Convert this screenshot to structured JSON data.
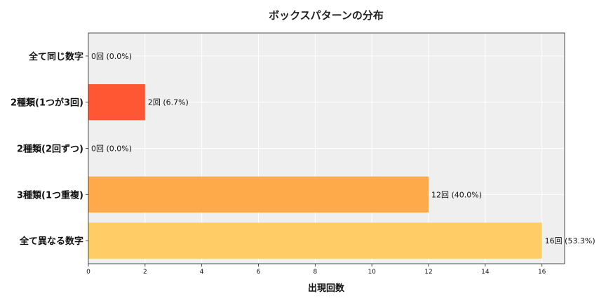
{
  "chart_data": {
    "type": "bar",
    "orientation": "horizontal",
    "title": "ボックスパターンの分布",
    "xlabel": "出現回数",
    "ylabel": "",
    "xlim": [
      0,
      16.8
    ],
    "xticks": [
      0,
      2,
      4,
      6,
      8,
      10,
      12,
      14,
      16
    ],
    "grid": true,
    "categories": [
      "全て同じ数字",
      "2種類(1つが3回)",
      "2種類(2回ずつ)",
      "3種類(1つ重複)",
      "全て異なる数字"
    ],
    "values": [
      0,
      2,
      0,
      12,
      16
    ],
    "labels": [
      "0回 (0.0%)",
      "2回 (6.7%)",
      "0回 (0.0%)",
      "12回 (40.0%)",
      "16回 (53.3%)"
    ],
    "colors": [
      "#ff5733",
      "#ff5733",
      "#ff8c42",
      "#ffaa4a",
      "#ffcc66"
    ],
    "background": "#efefef"
  }
}
